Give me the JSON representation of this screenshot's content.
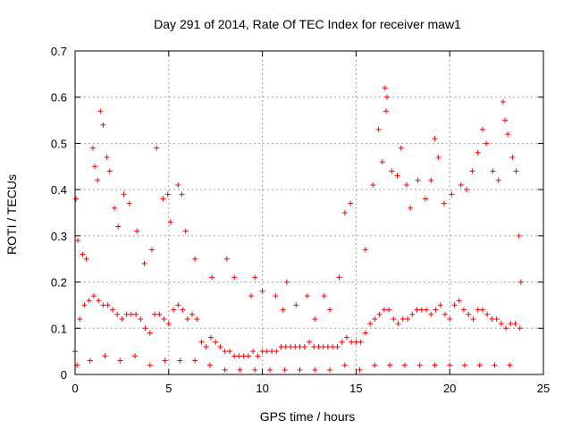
{
  "chart_data": {
    "type": "scatter",
    "title": "Day 291 of 2014, Rate Of TEC Index for receiver maw1",
    "xlabel": "GPS time / hours",
    "ylabel": "ROTI / TECUs",
    "xlim": [
      0,
      25
    ],
    "ylim": [
      0,
      0.7
    ],
    "xticks": [
      "0",
      "5",
      "10",
      "15",
      "20",
      "25"
    ],
    "yticks": [
      "0",
      "0.1",
      "0.2",
      "0.3",
      "0.4",
      "0.5",
      "0.6",
      "0.7"
    ],
    "grid": true,
    "marker": "+",
    "color": "#ff0000",
    "series": [
      {
        "points": [
          [
            0.0,
            0.05
          ],
          [
            0.25,
            0.12
          ],
          [
            0.5,
            0.15
          ],
          [
            0.75,
            0.16
          ],
          [
            1.0,
            0.17
          ],
          [
            1.25,
            0.16
          ],
          [
            1.5,
            0.15
          ],
          [
            1.75,
            0.15
          ],
          [
            2.0,
            0.14
          ],
          [
            2.25,
            0.13
          ],
          [
            2.5,
            0.12
          ],
          [
            2.75,
            0.13
          ],
          [
            3.0,
            0.13
          ],
          [
            3.25,
            0.13
          ],
          [
            3.5,
            0.12
          ],
          [
            3.75,
            0.1
          ],
          [
            4.0,
            0.09
          ],
          [
            4.25,
            0.13
          ],
          [
            4.5,
            0.13
          ],
          [
            4.75,
            0.12
          ],
          [
            5.0,
            0.11
          ],
          [
            5.25,
            0.14
          ],
          [
            5.5,
            0.15
          ],
          [
            5.75,
            0.14
          ],
          [
            6.0,
            0.12
          ],
          [
            6.25,
            0.13
          ],
          [
            6.5,
            0.12
          ],
          [
            6.75,
            0.07
          ],
          [
            7.0,
            0.06
          ],
          [
            7.25,
            0.08
          ],
          [
            7.5,
            0.07
          ],
          [
            7.75,
            0.06
          ],
          [
            8.0,
            0.05
          ],
          [
            8.25,
            0.05
          ],
          [
            8.5,
            0.04
          ],
          [
            8.75,
            0.04
          ],
          [
            9.0,
            0.04
          ],
          [
            9.25,
            0.04
          ],
          [
            9.5,
            0.05
          ],
          [
            9.75,
            0.04
          ],
          [
            10.0,
            0.05
          ],
          [
            10.25,
            0.05
          ],
          [
            10.5,
            0.05
          ],
          [
            10.75,
            0.05
          ],
          [
            11.0,
            0.06
          ],
          [
            11.25,
            0.06
          ],
          [
            11.5,
            0.06
          ],
          [
            11.75,
            0.06
          ],
          [
            12.0,
            0.06
          ],
          [
            12.25,
            0.06
          ],
          [
            12.5,
            0.07
          ],
          [
            12.75,
            0.06
          ],
          [
            13.0,
            0.06
          ],
          [
            13.25,
            0.06
          ],
          [
            13.5,
            0.06
          ],
          [
            13.75,
            0.06
          ],
          [
            14.0,
            0.06
          ],
          [
            14.25,
            0.07
          ],
          [
            14.5,
            0.08
          ],
          [
            14.75,
            0.07
          ],
          [
            15.0,
            0.07
          ],
          [
            15.25,
            0.07
          ],
          [
            15.5,
            0.09
          ],
          [
            15.75,
            0.11
          ],
          [
            16.0,
            0.12
          ],
          [
            16.25,
            0.13
          ],
          [
            16.5,
            0.14
          ],
          [
            16.75,
            0.14
          ],
          [
            17.0,
            0.12
          ],
          [
            17.25,
            0.11
          ],
          [
            17.5,
            0.12
          ],
          [
            17.75,
            0.12
          ],
          [
            18.0,
            0.13
          ],
          [
            18.25,
            0.14
          ],
          [
            18.5,
            0.14
          ],
          [
            18.75,
            0.14
          ],
          [
            19.0,
            0.13
          ],
          [
            19.25,
            0.14
          ],
          [
            19.5,
            0.15
          ],
          [
            19.75,
            0.13
          ],
          [
            20.0,
            0.12
          ],
          [
            20.25,
            0.15
          ],
          [
            20.5,
            0.16
          ],
          [
            20.75,
            0.14
          ],
          [
            21.0,
            0.13
          ],
          [
            21.25,
            0.12
          ],
          [
            21.5,
            0.14
          ],
          [
            21.75,
            0.14
          ],
          [
            22.0,
            0.13
          ],
          [
            22.25,
            0.12
          ],
          [
            22.5,
            0.12
          ],
          [
            22.75,
            0.11
          ],
          [
            23.0,
            0.1
          ],
          [
            23.25,
            0.11
          ],
          [
            23.5,
            0.11
          ],
          [
            23.75,
            0.1
          ],
          [
            0.05,
            0.38
          ],
          [
            0.15,
            0.29
          ],
          [
            0.4,
            0.26
          ],
          [
            0.6,
            0.25
          ],
          [
            0.95,
            0.49
          ],
          [
            1.05,
            0.45
          ],
          [
            1.2,
            0.42
          ],
          [
            1.35,
            0.57
          ],
          [
            1.5,
            0.54
          ],
          [
            1.7,
            0.47
          ],
          [
            1.85,
            0.44
          ],
          [
            2.1,
            0.36
          ],
          [
            2.3,
            0.32
          ],
          [
            2.6,
            0.39
          ],
          [
            2.9,
            0.37
          ],
          [
            3.3,
            0.31
          ],
          [
            3.7,
            0.24
          ],
          [
            4.1,
            0.27
          ],
          [
            4.35,
            0.49
          ],
          [
            4.7,
            0.38
          ],
          [
            4.95,
            0.39
          ],
          [
            5.1,
            0.33
          ],
          [
            5.5,
            0.41
          ],
          [
            5.7,
            0.39
          ],
          [
            5.9,
            0.31
          ],
          [
            6.4,
            0.25
          ],
          [
            7.3,
            0.21
          ],
          [
            8.1,
            0.25
          ],
          [
            8.5,
            0.21
          ],
          [
            9.4,
            0.17
          ],
          [
            9.6,
            0.21
          ],
          [
            10.0,
            0.18
          ],
          [
            10.7,
            0.17
          ],
          [
            11.1,
            0.14
          ],
          [
            11.3,
            0.2
          ],
          [
            11.8,
            0.15
          ],
          [
            12.4,
            0.17
          ],
          [
            12.8,
            0.12
          ],
          [
            13.3,
            0.17
          ],
          [
            13.6,
            0.14
          ],
          [
            14.1,
            0.21
          ],
          [
            14.4,
            0.35
          ],
          [
            14.7,
            0.37
          ],
          [
            15.5,
            0.27
          ],
          [
            15.9,
            0.41
          ],
          [
            16.2,
            0.53
          ],
          [
            16.4,
            0.46
          ],
          [
            16.55,
            0.62
          ],
          [
            16.65,
            0.6
          ],
          [
            16.6,
            0.57
          ],
          [
            16.9,
            0.44
          ],
          [
            17.2,
            0.43
          ],
          [
            17.4,
            0.49
          ],
          [
            17.7,
            0.41
          ],
          [
            17.9,
            0.36
          ],
          [
            18.3,
            0.42
          ],
          [
            18.7,
            0.38
          ],
          [
            19.0,
            0.42
          ],
          [
            19.2,
            0.51
          ],
          [
            19.4,
            0.47
          ],
          [
            19.7,
            0.37
          ],
          [
            20.1,
            0.39
          ],
          [
            20.6,
            0.41
          ],
          [
            20.9,
            0.4
          ],
          [
            21.2,
            0.44
          ],
          [
            21.5,
            0.48
          ],
          [
            21.75,
            0.53
          ],
          [
            21.95,
            0.5
          ],
          [
            22.3,
            0.44
          ],
          [
            22.6,
            0.42
          ],
          [
            22.85,
            0.59
          ],
          [
            22.95,
            0.55
          ],
          [
            23.1,
            0.52
          ],
          [
            23.35,
            0.47
          ],
          [
            23.55,
            0.44
          ],
          [
            23.7,
            0.3
          ],
          [
            23.8,
            0.2
          ],
          [
            0.1,
            0.02
          ],
          [
            0.8,
            0.03
          ],
          [
            1.6,
            0.04
          ],
          [
            2.4,
            0.03
          ],
          [
            3.2,
            0.04
          ],
          [
            4.0,
            0.02
          ],
          [
            4.8,
            0.03
          ],
          [
            5.6,
            0.03
          ],
          [
            6.4,
            0.03
          ],
          [
            7.2,
            0.02
          ],
          [
            8.0,
            0.01
          ],
          [
            8.8,
            0.01
          ],
          [
            9.6,
            0.01
          ],
          [
            10.4,
            0.01
          ],
          [
            11.2,
            0.01
          ],
          [
            12.0,
            0.01
          ],
          [
            12.8,
            0.01
          ],
          [
            13.6,
            0.01
          ],
          [
            14.4,
            0.02
          ],
          [
            15.2,
            0.01
          ],
          [
            16.0,
            0.02
          ],
          [
            16.8,
            0.02
          ],
          [
            17.6,
            0.02
          ],
          [
            18.4,
            0.02
          ],
          [
            19.2,
            0.02
          ],
          [
            20.0,
            0.02
          ],
          [
            20.8,
            0.02
          ],
          [
            21.6,
            0.02
          ],
          [
            22.4,
            0.02
          ],
          [
            23.2,
            0.02
          ]
        ]
      }
    ]
  }
}
